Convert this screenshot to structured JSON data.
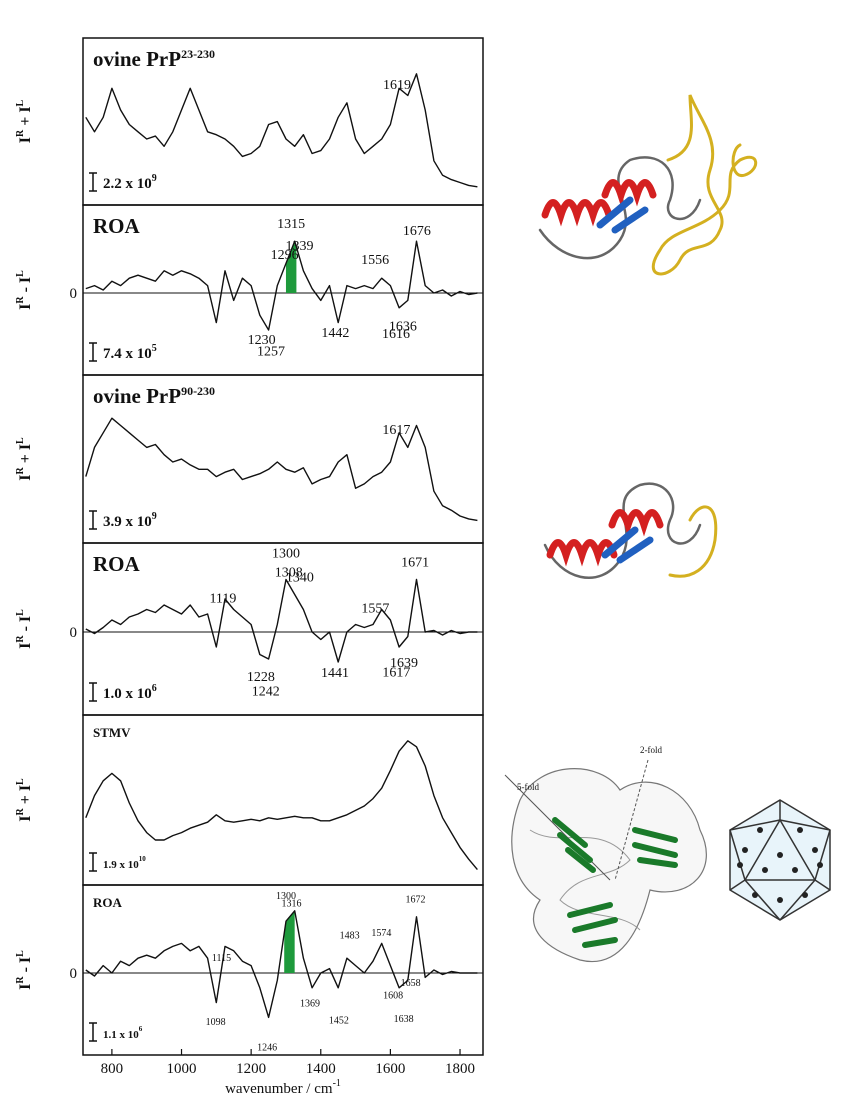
{
  "chart_data": [
    {
      "type": "line",
      "title": "ovine PrP",
      "title_sup": "23-230",
      "ylabel": [
        "I",
        "R",
        " + I",
        "L"
      ],
      "scale": "2.2 x 10",
      "scale_exp": "9",
      "x": [
        725,
        750,
        775,
        800,
        825,
        850,
        875,
        900,
        925,
        950,
        975,
        1000,
        1025,
        1050,
        1075,
        1100,
        1125,
        1150,
        1175,
        1200,
        1225,
        1250,
        1275,
        1300,
        1325,
        1350,
        1375,
        1400,
        1425,
        1450,
        1475,
        1500,
        1525,
        1550,
        1575,
        1600,
        1625,
        1650,
        1675,
        1700,
        1725,
        1750,
        1775,
        1800,
        1825,
        1850
      ],
      "values": [
        5.5,
        4.5,
        5.5,
        7.5,
        6,
        5,
        4.5,
        4,
        4.2,
        3.5,
        4.5,
        6,
        7.5,
        6,
        4.5,
        4.3,
        4,
        3.5,
        2.8,
        3,
        3.5,
        5,
        5.2,
        4,
        3.5,
        4.3,
        3,
        3.2,
        4,
        5.5,
        6.5,
        4,
        3,
        3.5,
        4,
        5,
        7.5,
        7,
        8.5,
        6,
        2.5,
        1.5,
        1.2,
        1,
        0.8,
        0.7
      ],
      "color": "#111111",
      "xlim": [
        717,
        1866
      ],
      "ylim": [
        0,
        10
      ],
      "peaks_above": [
        1619
      ],
      "peaks_below": []
    },
    {
      "type": "line",
      "title": "ROA",
      "ylabel": [
        "I",
        "R",
        " - I",
        "L"
      ],
      "scale": "7.4 x 10",
      "scale_exp": "5",
      "x": [
        725,
        750,
        775,
        800,
        825,
        850,
        875,
        900,
        925,
        950,
        975,
        1000,
        1025,
        1050,
        1075,
        1100,
        1125,
        1150,
        1175,
        1200,
        1225,
        1250,
        1275,
        1300,
        1325,
        1350,
        1375,
        1400,
        1425,
        1450,
        1475,
        1500,
        1525,
        1550,
        1575,
        1600,
        1625,
        1650,
        1675,
        1700,
        1725,
        1750,
        1775,
        1800,
        1825,
        1850
      ],
      "values": [
        0.3,
        0.5,
        0.2,
        0.8,
        0.5,
        1,
        1.2,
        1,
        0.8,
        1.5,
        1.2,
        1.5,
        1.3,
        1,
        0.5,
        -2,
        1.5,
        -0.5,
        1,
        0.5,
        -1.5,
        -2.5,
        0.5,
        2,
        3.5,
        1.5,
        0.3,
        -0.5,
        0.5,
        -2,
        0.5,
        0.3,
        0.5,
        0.3,
        1,
        0.5,
        -1,
        -0.5,
        3.5,
        0.5,
        0,
        0.2,
        -0.2,
        0.1,
        -0.1,
        0
      ],
      "color": "#111111",
      "xlim": [
        717,
        1866
      ],
      "ylim": [
        -5,
        5
      ],
      "yticks": [
        0
      ],
      "peaks_above": [
        1296,
        1315,
        1339,
        1556,
        1676
      ],
      "peaks_below": [
        1230,
        1257,
        1442,
        1616,
        1636
      ],
      "highlight": {
        "from": 1300,
        "to": 1330,
        "color": "#1e9a3c"
      }
    },
    {
      "type": "line",
      "title": "ovine PrP",
      "title_sup": "90-230",
      "ylabel": [
        "I",
        "R",
        " + I",
        "L"
      ],
      "scale": "3.9 x 10",
      "scale_exp": "9",
      "x": [
        725,
        750,
        775,
        800,
        825,
        850,
        875,
        900,
        925,
        950,
        975,
        1000,
        1025,
        1050,
        1075,
        1100,
        1125,
        1150,
        1175,
        1200,
        1225,
        1250,
        1275,
        1300,
        1325,
        1350,
        1375,
        1400,
        1425,
        1450,
        1475,
        1500,
        1525,
        1550,
        1575,
        1600,
        1625,
        1650,
        1675,
        1700,
        1725,
        1750,
        1775,
        1800,
        1825,
        1850
      ],
      "values": [
        4,
        6,
        7,
        8,
        7.5,
        7,
        6.5,
        6,
        6.2,
        5.5,
        5,
        5.2,
        4.8,
        4.5,
        4.5,
        4,
        4.3,
        4.5,
        3.8,
        4,
        4.2,
        4.5,
        5,
        4.5,
        4.3,
        4.6,
        3.5,
        3.8,
        4,
        5,
        5.5,
        3.2,
        3.5,
        4,
        4.3,
        5,
        7,
        6,
        7.5,
        6,
        3,
        2,
        1.7,
        1.3,
        1.1,
        1
      ],
      "color": "#111111",
      "xlim": [
        717,
        1866
      ],
      "ylim": [
        0,
        10
      ],
      "peaks_above": [
        1617
      ],
      "peaks_below": []
    },
    {
      "type": "line",
      "title": "ROA",
      "ylabel": [
        "I",
        "R",
        " - I",
        "L"
      ],
      "scale": "1.0 x 10",
      "scale_exp": "6",
      "x": [
        725,
        750,
        775,
        800,
        825,
        850,
        875,
        900,
        925,
        950,
        975,
        1000,
        1025,
        1050,
        1075,
        1100,
        1125,
        1150,
        1175,
        1200,
        1225,
        1250,
        1275,
        1300,
        1325,
        1350,
        1375,
        1400,
        1425,
        1450,
        1475,
        1500,
        1525,
        1550,
        1575,
        1600,
        1625,
        1650,
        1675,
        1700,
        1725,
        1750,
        1775,
        1800,
        1825,
        1850
      ],
      "values": [
        0.2,
        -0.1,
        0.3,
        0.8,
        0.5,
        1,
        1.2,
        1.5,
        1.3,
        1.8,
        1.5,
        1.2,
        1.8,
        1,
        1.2,
        -1,
        2.2,
        1.5,
        1,
        0.5,
        -1.5,
        -1.8,
        0.5,
        3.5,
        2.5,
        1.5,
        0,
        -0.5,
        0,
        -2,
        0,
        0.5,
        0.3,
        0.5,
        1.5,
        0.8,
        -1,
        -0.3,
        3.5,
        0,
        0.1,
        -0.2,
        0.1,
        -0.1,
        0,
        0
      ],
      "color": "#111111",
      "xlim": [
        717,
        1866
      ],
      "ylim": [
        -5,
        5
      ],
      "yticks": [
        0
      ],
      "peaks_above": [
        1119,
        1300,
        1308,
        1340,
        1557,
        1671
      ],
      "peaks_below": [
        1228,
        1242,
        1441,
        1617,
        1639
      ]
    },
    {
      "type": "line",
      "title": "STMV",
      "ylabel": [
        "I",
        "R",
        " + I",
        "L"
      ],
      "scale": "1.9 x 10",
      "scale_exp": "10",
      "x": [
        725,
        750,
        775,
        800,
        825,
        850,
        875,
        900,
        925,
        950,
        975,
        1000,
        1025,
        1050,
        1075,
        1100,
        1125,
        1150,
        1175,
        1200,
        1225,
        1250,
        1275,
        1300,
        1325,
        1350,
        1375,
        1400,
        1425,
        1450,
        1475,
        1500,
        1525,
        1550,
        1575,
        1600,
        1625,
        1650,
        1675,
        1700,
        1725,
        1750,
        1775,
        1800,
        1825,
        1850
      ],
      "values": [
        4,
        5.5,
        6.5,
        7,
        6.5,
        5,
        3.8,
        3,
        2.5,
        2.5,
        2.8,
        3,
        3.3,
        3.5,
        3.7,
        4.2,
        3.8,
        3.7,
        3.8,
        3.9,
        3.8,
        4,
        3.9,
        4,
        4.1,
        4,
        4,
        3.8,
        3.8,
        4,
        4.2,
        4.5,
        4.8,
        5.3,
        6,
        7.2,
        8.5,
        9.2,
        8.8,
        7.5,
        5.5,
        4,
        3,
        2,
        1.2,
        0.5
      ],
      "color": "#111111",
      "xlim": [
        717,
        1866
      ],
      "ylim": [
        0,
        10
      ],
      "peaks_above": [],
      "peaks_below": []
    },
    {
      "type": "line",
      "title": "ROA",
      "ylabel": [
        "I",
        "R",
        " - I",
        "L"
      ],
      "scale": "1.1 x 10",
      "scale_exp": "6",
      "x": [
        725,
        750,
        775,
        800,
        825,
        850,
        875,
        900,
        925,
        950,
        975,
        1000,
        1025,
        1050,
        1075,
        1100,
        1125,
        1150,
        1175,
        1200,
        1225,
        1250,
        1275,
        1300,
        1325,
        1350,
        1375,
        1400,
        1425,
        1450,
        1475,
        1500,
        1525,
        1550,
        1575,
        1600,
        1625,
        1650,
        1675,
        1700,
        1725,
        1750,
        1775,
        1800,
        1825,
        1850
      ],
      "values": [
        0.2,
        -0.2,
        0.5,
        0,
        0.8,
        0.5,
        1,
        1.2,
        1,
        1.5,
        1.8,
        2,
        1.5,
        1.8,
        1,
        -2,
        1.8,
        1.5,
        0.8,
        0.5,
        -1,
        -3,
        -0.5,
        3.5,
        4.2,
        1,
        -1,
        0,
        0.3,
        -1,
        1,
        0.5,
        0,
        0.8,
        2,
        0.5,
        -1,
        -0.5,
        3.8,
        -0.3,
        0.2,
        -0.1,
        0.1,
        0,
        0,
        0
      ],
      "color": "#111111",
      "xlim": [
        717,
        1866
      ],
      "ylim": [
        -5,
        5
      ],
      "yticks": [
        0
      ],
      "peaks_above": [
        1115,
        1300,
        1316,
        1483,
        1574,
        1672
      ],
      "peaks_below": [
        1098,
        1246,
        1369,
        1452,
        1608,
        1638,
        1658
      ],
      "highlight": {
        "from": 1295,
        "to": 1325,
        "color": "#1e9a3c"
      },
      "xticks": [
        800,
        1000,
        1200,
        1400,
        1600,
        1800
      ],
      "xlabel": "wavenumber / cm",
      "xlabel_sup": "-1"
    }
  ],
  "structure_labels": [
    "5-fold",
    "2-fold"
  ]
}
